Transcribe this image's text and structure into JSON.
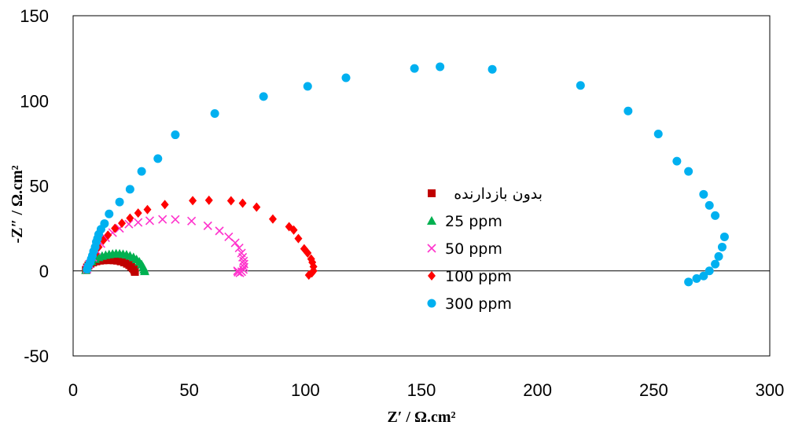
{
  "chart_data": {
    "type": "scatter",
    "title": "",
    "xlabel": "Z′ / Ω.cm²",
    "ylabel": "-Z″ / Ω.cm²",
    "xlim": [
      0,
      300
    ],
    "ylim": [
      -50,
      150
    ],
    "xticks": [
      0,
      50,
      100,
      150,
      200,
      250,
      300
    ],
    "yticks": [
      -50,
      0,
      50,
      100,
      150
    ],
    "grid": false,
    "legend_position": "center-right",
    "series": [
      {
        "name": "بدون بازدارنده",
        "marker": "square",
        "color": "#C00000",
        "points": [
          [
            5.5,
            0.5
          ],
          [
            6,
            2
          ],
          [
            6.6,
            3.2
          ],
          [
            7.5,
            4.2
          ],
          [
            8.6,
            5
          ],
          [
            10,
            5.6
          ],
          [
            11.5,
            6
          ],
          [
            13,
            6.2
          ],
          [
            14.5,
            6.3
          ],
          [
            16,
            6.3
          ],
          [
            17.5,
            6.2
          ],
          [
            19,
            6
          ],
          [
            20.5,
            5.6
          ],
          [
            22,
            5
          ],
          [
            23.2,
            4.2
          ],
          [
            24.2,
            3.4
          ],
          [
            25,
            2.5
          ],
          [
            25.7,
            1.6
          ],
          [
            26.2,
            0.8
          ],
          [
            26.5,
            0
          ],
          [
            26.6,
            -0.6
          ]
        ]
      },
      {
        "name": "25 ppm",
        "marker": "triangle",
        "color": "#00B050",
        "points": [
          [
            5.5,
            0.5
          ],
          [
            6,
            2.5
          ],
          [
            6.8,
            4.2
          ],
          [
            8,
            5.6
          ],
          [
            9.5,
            7
          ],
          [
            11,
            8
          ],
          [
            12.5,
            8.8
          ],
          [
            14,
            9.3
          ],
          [
            15.5,
            9.7
          ],
          [
            17,
            10
          ],
          [
            18.5,
            10.2
          ],
          [
            20,
            10.1
          ],
          [
            21.5,
            9.9
          ],
          [
            23,
            9.5
          ],
          [
            24.5,
            8.9
          ],
          [
            26,
            8
          ],
          [
            27.3,
            6.8
          ],
          [
            28.5,
            5.4
          ],
          [
            29.5,
            3.8
          ],
          [
            30.2,
            2.2
          ],
          [
            30.6,
            0.8
          ],
          [
            30.8,
            -0.2
          ]
        ]
      },
      {
        "name": "50 ppm",
        "marker": "x",
        "color": "#FF33CC",
        "points": [
          [
            6,
            1
          ],
          [
            7,
            4
          ],
          [
            8.5,
            8
          ],
          [
            10,
            12
          ],
          [
            12,
            16
          ],
          [
            14,
            19.5
          ],
          [
            17,
            22.5
          ],
          [
            20,
            25
          ],
          [
            24,
            27.5
          ],
          [
            28,
            28.5
          ],
          [
            33,
            29.5
          ],
          [
            38.5,
            30.3
          ],
          [
            44,
            30.2
          ],
          [
            51,
            29.3
          ],
          [
            58,
            26.5
          ],
          [
            63,
            23.5
          ],
          [
            67,
            20
          ],
          [
            69.8,
            16.5
          ],
          [
            71.5,
            13.5
          ],
          [
            72.5,
            10.5
          ],
          [
            73,
            8
          ],
          [
            73.4,
            5.8
          ],
          [
            73.6,
            4
          ],
          [
            73.6,
            2.2
          ],
          [
            73.3,
            0.8
          ],
          [
            72.6,
            -0.5
          ],
          [
            71.8,
            -1.2
          ],
          [
            71,
            -0.8
          ],
          [
            70.8,
            0
          ]
        ]
      },
      {
        "name": "100 ppm",
        "marker": "diamond",
        "color": "#FF0000",
        "points": [
          [
            6,
            1
          ],
          [
            7,
            3
          ],
          [
            8,
            6.5
          ],
          [
            9.5,
            10
          ],
          [
            11,
            14
          ],
          [
            13,
            18
          ],
          [
            15,
            21
          ],
          [
            18,
            25
          ],
          [
            21,
            28
          ],
          [
            24.5,
            31
          ],
          [
            28,
            34
          ],
          [
            32,
            36
          ],
          [
            39.5,
            39
          ],
          [
            51.5,
            41.3
          ],
          [
            58.5,
            41.5
          ],
          [
            68,
            41.2
          ],
          [
            73,
            39.8
          ],
          [
            79,
            37.5
          ],
          [
            86,
            30.5
          ],
          [
            93,
            26
          ],
          [
            95,
            24
          ],
          [
            97,
            19
          ],
          [
            99.5,
            13
          ],
          [
            101,
            10.5
          ],
          [
            102.5,
            7
          ],
          [
            103,
            5
          ],
          [
            103.5,
            2.5
          ],
          [
            103.5,
            0
          ],
          [
            102.8,
            -1.2
          ],
          [
            101.5,
            -2.5
          ]
        ]
      },
      {
        "name": "300 ppm",
        "marker": "circle",
        "color": "#00B0F0",
        "points": [
          [
            6,
            1
          ],
          [
            6.5,
            3
          ],
          [
            7.3,
            5
          ],
          [
            7.8,
            7
          ],
          [
            8.3,
            9
          ],
          [
            8.8,
            11.5
          ],
          [
            9.5,
            14
          ],
          [
            10,
            17
          ],
          [
            10.5,
            19
          ],
          [
            11,
            21.5
          ],
          [
            12,
            24.5
          ],
          [
            13.5,
            27.8
          ],
          [
            15.5,
            33.5
          ],
          [
            20,
            40.5
          ],
          [
            24.5,
            48
          ],
          [
            29.5,
            58.5
          ],
          [
            36.5,
            66
          ],
          [
            44,
            80
          ],
          [
            61,
            92.5
          ],
          [
            82,
            102.5
          ],
          [
            101,
            108.5
          ],
          [
            117.5,
            113.5
          ],
          [
            147,
            119
          ],
          [
            158,
            120
          ],
          [
            180.5,
            118.5
          ],
          [
            218.5,
            109
          ],
          [
            239,
            94
          ],
          [
            252,
            80.5
          ],
          [
            260,
            64.5
          ],
          [
            265,
            58.5
          ],
          [
            271.5,
            45
          ],
          [
            274,
            38.5
          ],
          [
            276.5,
            32.5
          ],
          [
            280.5,
            20
          ],
          [
            279.5,
            14
          ],
          [
            278,
            8.5
          ],
          [
            276.5,
            4
          ],
          [
            274,
            0
          ],
          [
            271.5,
            -3
          ],
          [
            268.5,
            -4.5
          ],
          [
            265,
            -6.5
          ]
        ]
      }
    ]
  }
}
